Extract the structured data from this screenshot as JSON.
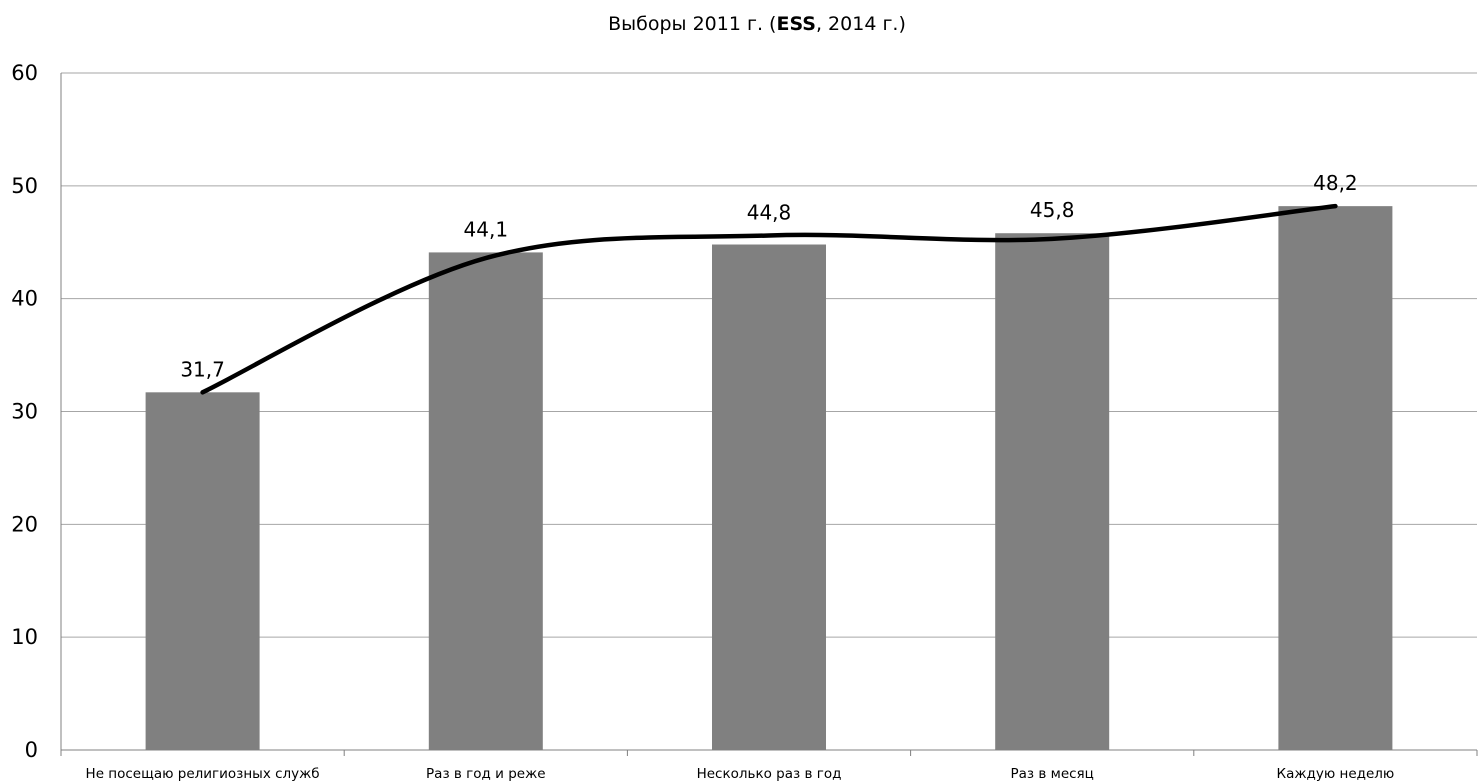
{
  "chart_data": {
    "type": "bar",
    "title": {
      "prefix": "Выборы 2011 г. (",
      "bold": "ESS",
      "suffix": ", 2014 г.)"
    },
    "categories": [
      "Не посещаю религиозных служб",
      "Раз в год и реже",
      "Несколько раз в год",
      "Раз в месяц",
      "Каждую неделю"
    ],
    "values": [
      31.7,
      44.1,
      44.8,
      45.8,
      48.2
    ],
    "value_labels": [
      "31,7",
      "44,1",
      "44,8",
      "45,8",
      "48,2"
    ],
    "trendline": {
      "type": "polynomial",
      "points": [
        31.7,
        43.6,
        45.6,
        45.3,
        48.2
      ]
    },
    "ylim": [
      0,
      60
    ],
    "yticks": [
      0,
      10,
      20,
      30,
      40,
      50,
      60
    ],
    "xlabel": "",
    "ylabel": "",
    "grid": true,
    "legend": "none",
    "colors": {
      "bar": "#808080",
      "trendline": "#000000",
      "gridline": "#a6a6a6",
      "axis": "#808080"
    }
  }
}
